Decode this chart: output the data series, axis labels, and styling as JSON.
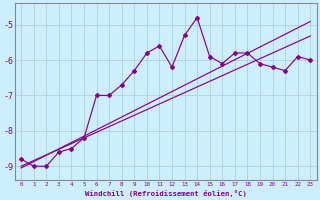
{
  "x": [
    0,
    1,
    2,
    3,
    4,
    5,
    6,
    7,
    8,
    9,
    10,
    11,
    12,
    13,
    14,
    15,
    16,
    17,
    18,
    19,
    20,
    21,
    22,
    23
  ],
  "y_main": [
    -8.8,
    -9.0,
    -9.0,
    -8.6,
    -8.5,
    -8.2,
    -7.0,
    -7.0,
    -6.7,
    -6.3,
    -5.8,
    -5.6,
    -6.2,
    -5.3,
    -4.8,
    -5.9,
    -6.1,
    -5.8,
    -5.8,
    -6.1,
    -6.2,
    -6.3,
    -5.9,
    -6.0
  ],
  "y_line1": [
    -9.05,
    -8.87,
    -8.69,
    -8.51,
    -8.33,
    -8.15,
    -7.97,
    -7.79,
    -7.61,
    -7.43,
    -7.25,
    -7.07,
    -6.89,
    -6.71,
    -6.53,
    -6.35,
    -6.17,
    -5.99,
    -5.81,
    -5.63,
    -5.45,
    -5.27,
    -5.09,
    -4.91
  ],
  "y_line2": [
    -9.0,
    -8.84,
    -8.68,
    -8.52,
    -8.36,
    -8.2,
    -8.04,
    -7.88,
    -7.72,
    -7.56,
    -7.4,
    -7.24,
    -7.08,
    -6.92,
    -6.76,
    -6.6,
    -6.44,
    -6.28,
    -6.12,
    -5.96,
    -5.8,
    -5.64,
    -5.48,
    -5.32
  ],
  "color": "#880088",
  "bg_color": "#cceeff",
  "grid_color": "#aacccc",
  "xlabel": "Windchill (Refroidissement éolien,°C)",
  "xlim": [
    -0.5,
    23.5
  ],
  "ylim": [
    -9.4,
    -4.4
  ],
  "yticks": [
    -9,
    -8,
    -7,
    -6,
    -5
  ],
  "xtick_labels": [
    "0",
    "1",
    "2",
    "3",
    "4",
    "5",
    "6",
    "7",
    "8",
    "9",
    "10",
    "11",
    "12",
    "13",
    "14",
    "15",
    "16",
    "17",
    "18",
    "19",
    "20",
    "21",
    "22",
    "23"
  ]
}
